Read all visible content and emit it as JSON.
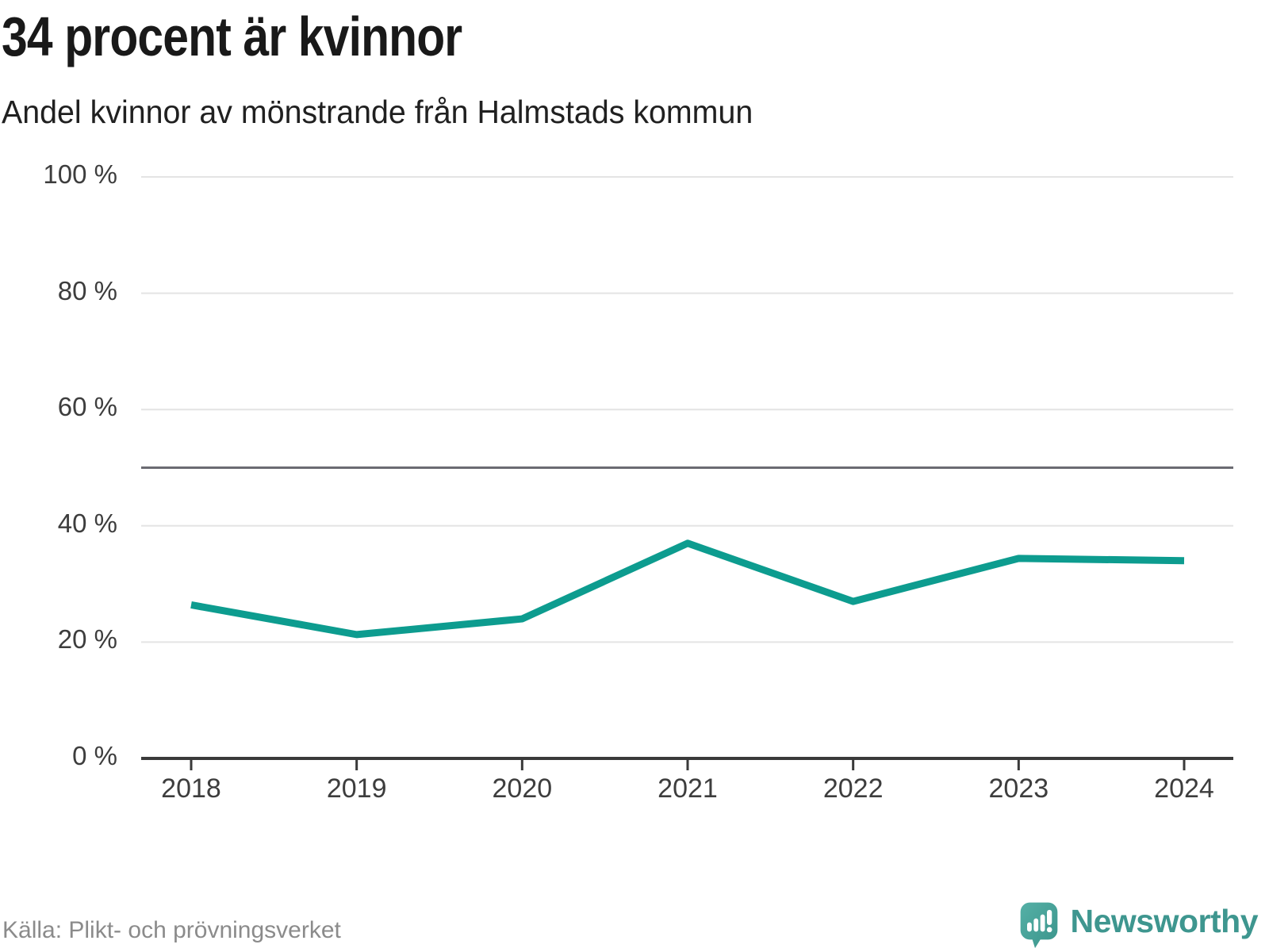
{
  "header": {
    "title": "34 procent är kvinnor",
    "subtitle": "Andel kvinnor av mönstrande från Halmstads kommun"
  },
  "chart_data": {
    "type": "line",
    "title": "34 procent är kvinnor",
    "subtitle": "Andel kvinnor av mönstrande från Halmstads kommun",
    "categories": [
      "2018",
      "2019",
      "2020",
      "2021",
      "2022",
      "2023",
      "2024"
    ],
    "series": [
      {
        "name": "Andel kvinnor av mönstrande",
        "values": [
          26.4,
          21.3,
          24.0,
          37.0,
          27.0,
          34.4,
          34.0
        ]
      }
    ],
    "unit": "%",
    "ylim": [
      0,
      100
    ],
    "yticks": [
      0,
      20,
      40,
      60,
      80,
      100
    ],
    "ytick_labels": [
      "0 %",
      "20 %",
      "40 %",
      "60 %",
      "80 %",
      "100 %"
    ],
    "reference_line": 50,
    "grid": "horizontal",
    "legend": "none",
    "latest_value_label": "34"
  },
  "colors": {
    "line": "#0d9c8f",
    "grid": "#e4e4e4",
    "axis": "#3a3a3a",
    "reference": "#6b6b72",
    "tick_text": "#3d3d3d",
    "title_text": "#191919",
    "muted_text": "#8b8b8b",
    "brand": "#3e968f",
    "brand_icon_light": "#55b0a6",
    "brand_icon_dark": "#3a948b"
  },
  "footer": {
    "source": "Källa: Plikt- och prövningsverket",
    "brand": "Newsworthy"
  }
}
